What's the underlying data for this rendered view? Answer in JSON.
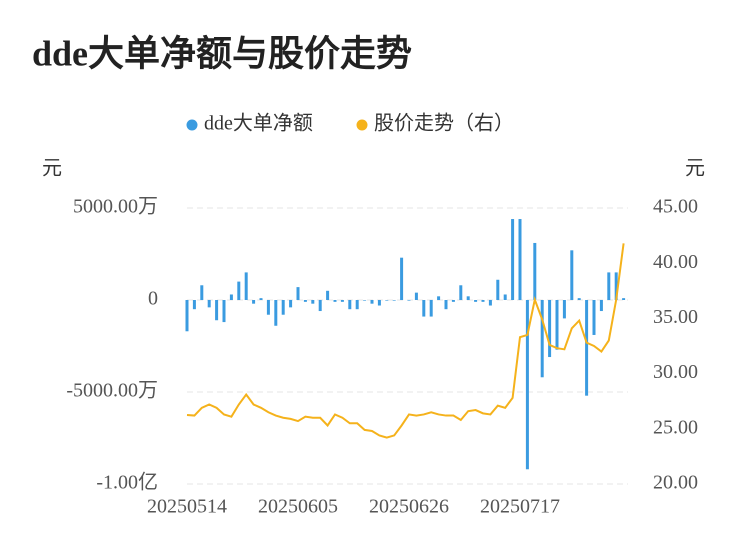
{
  "chart_data": {
    "type": "bar",
    "title": "dde大单净额与股价走势",
    "y_label": "元",
    "y2_label": "元",
    "categories": [
      "20250514",
      null,
      null,
      null,
      null,
      null,
      null,
      null,
      null,
      null,
      null,
      null,
      null,
      null,
      null,
      "20250605",
      null,
      null,
      null,
      null,
      null,
      null,
      null,
      null,
      null,
      null,
      null,
      null,
      null,
      null,
      "20250626",
      null,
      null,
      null,
      null,
      null,
      null,
      null,
      null,
      null,
      null,
      null,
      null,
      null,
      null,
      "20250717",
      null,
      null,
      null,
      null,
      null,
      null,
      null,
      null,
      null,
      null,
      null,
      null,
      null,
      null
    ],
    "series": [
      {
        "name": "dde大单净额",
        "type": "bar",
        "color": "#3a9be0",
        "values": [
          -1700,
          -500,
          800,
          -400,
          -1100,
          -1200,
          300,
          1000,
          1500,
          -200,
          100,
          -800,
          -1400,
          -800,
          -400,
          700,
          -100,
          -200,
          -600,
          500,
          -100,
          -100,
          -500,
          -500,
          0,
          -200,
          -300,
          0,
          0,
          2300,
          0,
          400,
          -900,
          -900,
          200,
          -500,
          -100,
          800,
          200,
          -100,
          -100,
          -300,
          1100,
          300,
          4400,
          4400,
          -9200,
          3100,
          -4200,
          -3100,
          -2700,
          -1000,
          2700,
          100,
          -5200,
          -1900,
          -600,
          1500,
          1500,
          100
        ]
      },
      {
        "name": "股价走势（右）",
        "type": "line",
        "axis": "y2",
        "color": "#f5b21b",
        "values": [
          26.25,
          26.2,
          26.9,
          27.2,
          26.9,
          26.3,
          26.1,
          27.2,
          28.1,
          27.2,
          26.9,
          26.5,
          26.2,
          26.0,
          25.9,
          25.7,
          26.1,
          26.0,
          26.0,
          25.3,
          26.3,
          26.0,
          25.5,
          25.5,
          24.9,
          24.8,
          24.4,
          24.2,
          24.4,
          25.3,
          26.3,
          26.2,
          26.3,
          26.5,
          26.3,
          26.2,
          26.2,
          25.8,
          26.6,
          26.7,
          26.4,
          26.3,
          27.1,
          26.9,
          27.8,
          33.3,
          33.5,
          36.7,
          34.9,
          32.6,
          32.3,
          32.2,
          34.1,
          34.8,
          32.8,
          32.5,
          32.0,
          33.0,
          36.7,
          41.8
        ]
      }
    ],
    "ylim": [
      -10000,
      5000
    ],
    "yticks": [
      {
        "value": 5000,
        "label": "5000.00万"
      },
      0,
      {
        "value": -5000,
        "label": "-5000.00万"
      },
      {
        "value": -10000,
        "label": "-1.00亿"
      }
    ],
    "y2lim": [
      20,
      45
    ],
    "y2ticks": [
      {
        "value": 45,
        "label": "45.00"
      },
      {
        "value": 40,
        "label": "40.00"
      },
      {
        "value": 35,
        "label": "35.00"
      },
      {
        "value": 30,
        "label": "30.00"
      },
      {
        "value": 25,
        "label": "25.00"
      },
      {
        "value": 20,
        "label": "20.00"
      }
    ],
    "grid": true
  }
}
